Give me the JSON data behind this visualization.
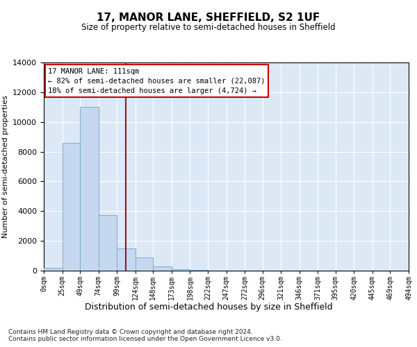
{
  "title": "17, MANOR LANE, SHEFFIELD, S2 1UF",
  "subtitle": "Size of property relative to semi-detached houses in Sheffield",
  "xlabel": "Distribution of semi-detached houses by size in Sheffield",
  "ylabel": "Number of semi-detached properties",
  "annotation_line1": "17 MANOR LANE: 111sqm",
  "annotation_line2": "← 82% of semi-detached houses are smaller (22,087)",
  "annotation_line3": "18% of semi-detached houses are larger (4,724) →",
  "bin_edges": [
    0,
    25,
    49,
    74,
    99,
    124,
    148,
    173,
    198,
    222,
    247,
    272,
    296,
    321,
    346,
    371,
    395,
    420,
    445,
    469,
    494
  ],
  "bin_labels": [
    "0sqm",
    "25sqm",
    "49sqm",
    "74sqm",
    "99sqm",
    "124sqm",
    "148sqm",
    "173sqm",
    "198sqm",
    "222sqm",
    "247sqm",
    "272sqm",
    "296sqm",
    "321sqm",
    "346sqm",
    "371sqm",
    "395sqm",
    "420sqm",
    "445sqm",
    "469sqm",
    "494sqm"
  ],
  "counts": [
    200,
    8600,
    11000,
    3750,
    1480,
    900,
    280,
    110,
    50,
    18,
    5,
    3,
    0,
    0,
    0,
    0,
    0,
    0,
    0,
    0
  ],
  "bar_color": "#c5d8ef",
  "bar_edge_color": "#7aadd4",
  "vline_color": "#8b1a1a",
  "vline_x": 111,
  "bg_color": "#dce8f5",
  "grid_color": "#ffffff",
  "footer_line1": "Contains HM Land Registry data © Crown copyright and database right 2024.",
  "footer_line2": "Contains public sector information licensed under the Open Government Licence v3.0.",
  "ylim": [
    0,
    14000
  ],
  "yticks": [
    0,
    2000,
    4000,
    6000,
    8000,
    10000,
    12000,
    14000
  ],
  "xlim": [
    0,
    494
  ]
}
